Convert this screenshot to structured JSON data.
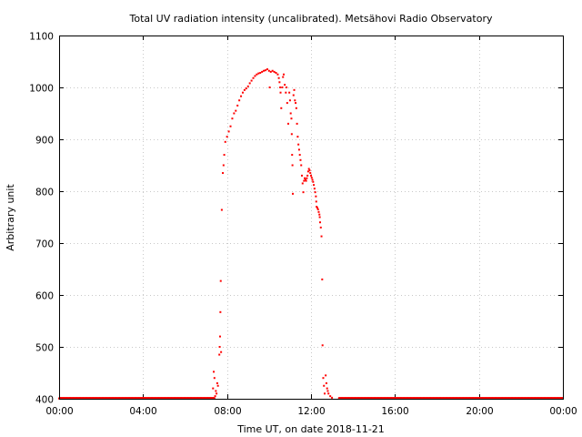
{
  "chart_data": {
    "type": "scatter",
    "title": "Total UV radiation intensity (uncalibrated). Metsähovi Radio Observatory",
    "xlabel": "Time UT, on date 2018-11-21",
    "ylabel": "Arbitrary unit",
    "xlim": [
      "00:00",
      "24:00"
    ],
    "ylim": [
      400,
      1100
    ],
    "x_ticks": [
      "00:00",
      "04:00",
      "08:00",
      "12:00",
      "16:00",
      "20:00",
      "00:00"
    ],
    "y_ticks": [
      "400",
      "500",
      "600",
      "700",
      "800",
      "900",
      "1000",
      "1100"
    ],
    "grid": true,
    "marker_color": "#ff0000",
    "series": [
      {
        "baseline_before": {
          "from": "00:00",
          "to": "07:25",
          "value": 401
        },
        "baseline_after": {
          "from": "13:20",
          "to": "24:00",
          "value": 401
        },
        "points": [
          [
            "07:20",
            420
          ],
          [
            "07:22",
            452
          ],
          [
            "07:24",
            440
          ],
          [
            "07:26",
            405
          ],
          [
            "07:28",
            415
          ],
          [
            "07:30",
            410
          ],
          [
            "07:32",
            430
          ],
          [
            "07:34",
            425
          ],
          [
            "07:38",
            485
          ],
          [
            "07:39",
            500
          ],
          [
            "07:40",
            520
          ],
          [
            "07:41",
            567
          ],
          [
            "07:42",
            627
          ],
          [
            "07:43",
            490
          ],
          [
            "07:45",
            764
          ],
          [
            "07:48",
            835
          ],
          [
            "07:50",
            850
          ],
          [
            "07:52",
            870
          ],
          [
            "07:55",
            895
          ],
          [
            "08:00",
            905
          ],
          [
            "08:05",
            915
          ],
          [
            "08:10",
            925
          ],
          [
            "08:15",
            940
          ],
          [
            "08:20",
            950
          ],
          [
            "08:25",
            955
          ],
          [
            "08:30",
            965
          ],
          [
            "08:35",
            975
          ],
          [
            "08:40",
            983
          ],
          [
            "08:45",
            990
          ],
          [
            "08:50",
            995
          ],
          [
            "08:55",
            998
          ],
          [
            "09:00",
            1002
          ],
          [
            "09:05",
            1008
          ],
          [
            "09:10",
            1013
          ],
          [
            "09:15",
            1018
          ],
          [
            "09:20",
            1022
          ],
          [
            "09:25",
            1025
          ],
          [
            "09:30",
            1027
          ],
          [
            "09:35",
            1028
          ],
          [
            "09:40",
            1030
          ],
          [
            "09:45",
            1032
          ],
          [
            "09:50",
            1033
          ],
          [
            "09:55",
            1035
          ],
          [
            "10:00",
            1032
          ],
          [
            "10:02",
            1000
          ],
          [
            "10:05",
            1030
          ],
          [
            "10:10",
            1032
          ],
          [
            "10:15",
            1030
          ],
          [
            "10:20",
            1028
          ],
          [
            "10:25",
            1025
          ],
          [
            "10:28",
            1018
          ],
          [
            "10:30",
            1010
          ],
          [
            "10:32",
            1000
          ],
          [
            "10:33",
            990
          ],
          [
            "10:35",
            960
          ],
          [
            "10:38",
            1000
          ],
          [
            "10:40",
            1020
          ],
          [
            "10:42",
            1025
          ],
          [
            "10:45",
            1005
          ],
          [
            "10:48",
            990
          ],
          [
            "10:50",
            1000
          ],
          [
            "10:52",
            970
          ],
          [
            "10:55",
            930
          ],
          [
            "10:58",
            990
          ],
          [
            "11:00",
            975
          ],
          [
            "11:02",
            950
          ],
          [
            "11:04",
            940
          ],
          [
            "11:05",
            910
          ],
          [
            "11:06",
            870
          ],
          [
            "11:07",
            850
          ],
          [
            "11:08",
            795
          ],
          [
            "11:10",
            985
          ],
          [
            "11:12",
            995
          ],
          [
            "11:14",
            975
          ],
          [
            "11:16",
            970
          ],
          [
            "11:18",
            960
          ],
          [
            "11:20",
            930
          ],
          [
            "11:22",
            905
          ],
          [
            "11:24",
            890
          ],
          [
            "11:26",
            880
          ],
          [
            "11:28",
            870
          ],
          [
            "11:30",
            860
          ],
          [
            "11:32",
            850
          ],
          [
            "11:34",
            830
          ],
          [
            "11:36",
            815
          ],
          [
            "11:38",
            798
          ],
          [
            "11:40",
            820
          ],
          [
            "11:42",
            825
          ],
          [
            "11:44",
            822
          ],
          [
            "11:46",
            820
          ],
          [
            "11:48",
            825
          ],
          [
            "11:50",
            830
          ],
          [
            "11:52",
            838
          ],
          [
            "11:54",
            843
          ],
          [
            "11:56",
            840
          ],
          [
            "11:58",
            835
          ],
          [
            "12:00",
            830
          ],
          [
            "12:02",
            826
          ],
          [
            "12:04",
            822
          ],
          [
            "12:06",
            818
          ],
          [
            "12:08",
            812
          ],
          [
            "12:10",
            805
          ],
          [
            "12:12",
            798
          ],
          [
            "12:14",
            790
          ],
          [
            "12:15",
            780
          ],
          [
            "12:16",
            770
          ],
          [
            "12:18",
            768
          ],
          [
            "12:20",
            765
          ],
          [
            "12:22",
            760
          ],
          [
            "12:24",
            755
          ],
          [
            "12:25",
            750
          ],
          [
            "12:26",
            740
          ],
          [
            "12:28",
            730
          ],
          [
            "12:30",
            713
          ],
          [
            "12:32",
            630
          ],
          [
            "12:33",
            503
          ],
          [
            "12:35",
            440
          ],
          [
            "12:37",
            425
          ],
          [
            "12:39",
            410
          ],
          [
            "12:42",
            445
          ],
          [
            "12:44",
            430
          ],
          [
            "12:46",
            420
          ],
          [
            "12:48",
            415
          ],
          [
            "12:50",
            410
          ],
          [
            "12:55",
            405
          ],
          [
            "13:00",
            402
          ]
        ]
      }
    ]
  }
}
